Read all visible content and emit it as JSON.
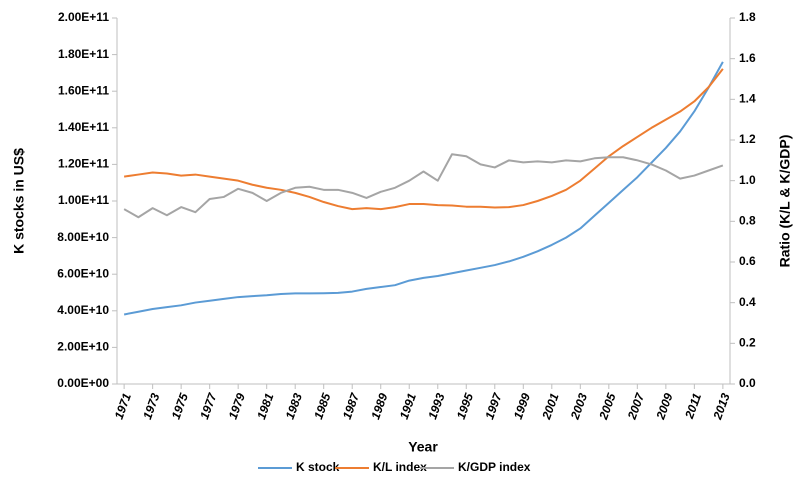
{
  "chart_data": {
    "type": "line",
    "x_label": "Year",
    "y_label": "K stocks in US$",
    "y2_label": "Ratio (K/L & K/GDP)",
    "x": [
      1971,
      1972,
      1973,
      1974,
      1975,
      1976,
      1977,
      1978,
      1979,
      1980,
      1981,
      1982,
      1983,
      1984,
      1985,
      1986,
      1987,
      1988,
      1989,
      1990,
      1991,
      1992,
      1993,
      1994,
      1995,
      1996,
      1997,
      1998,
      1999,
      2000,
      2001,
      2002,
      2003,
      2004,
      2005,
      2006,
      2007,
      2008,
      2009,
      2010,
      2011,
      2012,
      2013
    ],
    "xlim": [
      1970.5,
      2013.5
    ],
    "xticks": [
      1971,
      1973,
      1975,
      1977,
      1979,
      1981,
      1983,
      1985,
      1987,
      1989,
      1991,
      1993,
      1995,
      1997,
      1999,
      2001,
      2003,
      2005,
      2007,
      2009,
      2011,
      2013
    ],
    "ylim": [
      0,
      200000000000
    ],
    "yticks": [
      {
        "value": 0,
        "label": "0.00E+00"
      },
      {
        "value": 20000000000,
        "label": "2.00E+10"
      },
      {
        "value": 40000000000,
        "label": "4.00E+10"
      },
      {
        "value": 60000000000,
        "label": "6.00E+10"
      },
      {
        "value": 80000000000,
        "label": "8.00E+10"
      },
      {
        "value": 100000000000,
        "label": "1.00E+11"
      },
      {
        "value": 120000000000,
        "label": "1.20E+11"
      },
      {
        "value": 140000000000,
        "label": "1.40E+11"
      },
      {
        "value": 160000000000,
        "label": "1.60E+11"
      },
      {
        "value": 180000000000,
        "label": "1.80E+11"
      },
      {
        "value": 200000000000,
        "label": "2.00E+11"
      }
    ],
    "y2lim": [
      0,
      1.8
    ],
    "y2ticks": [
      {
        "value": 0,
        "label": "0.0"
      },
      0.2,
      0.4,
      0.6,
      0.8,
      {
        "value": 1,
        "label": "1.0"
      },
      1.2,
      1.4,
      1.6,
      1.8
    ],
    "grid": false,
    "legend": "bottom",
    "series": [
      {
        "name": "K stock",
        "color": "#5b9bd5",
        "axis": "y",
        "values": [
          38000000000,
          39500000000,
          41000000000,
          42000000000,
          43000000000,
          44500000000,
          45500000000,
          46500000000,
          47500000000,
          48000000000,
          48500000000,
          49200000000,
          49500000000,
          49500000000,
          49600000000,
          49800000000,
          50500000000,
          52000000000,
          53000000000,
          54000000000,
          56500000000,
          58000000000,
          59000000000,
          60500000000,
          62000000000,
          63500000000,
          65000000000,
          67000000000,
          69500000000,
          72500000000,
          76000000000,
          80000000000,
          85000000000,
          92000000000,
          99000000000,
          106000000000,
          113000000000,
          121000000000,
          129000000000,
          138000000000,
          149000000000,
          162000000000,
          176000000000
        ]
      },
      {
        "name": "K/L index",
        "color": "#ed7d31",
        "axis": "y2",
        "values": [
          1.02,
          1.03,
          1.04,
          1.035,
          1.025,
          1.03,
          1.02,
          1.01,
          1.0,
          0.98,
          0.965,
          0.955,
          0.94,
          0.92,
          0.895,
          0.875,
          0.86,
          0.865,
          0.86,
          0.87,
          0.885,
          0.885,
          0.88,
          0.878,
          0.872,
          0.872,
          0.868,
          0.87,
          0.88,
          0.9,
          0.925,
          0.955,
          1.0,
          1.06,
          1.12,
          1.17,
          1.215,
          1.26,
          1.3,
          1.34,
          1.39,
          1.46,
          1.55
        ]
      },
      {
        "name": "K/GDP index",
        "color": "#a5a5a5",
        "axis": "y2",
        "values": [
          0.86,
          0.82,
          0.865,
          0.83,
          0.87,
          0.845,
          0.91,
          0.92,
          0.96,
          0.94,
          0.9,
          0.94,
          0.965,
          0.97,
          0.955,
          0.955,
          0.94,
          0.915,
          0.945,
          0.965,
          1.0,
          1.045,
          1.0,
          1.13,
          1.12,
          1.08,
          1.065,
          1.1,
          1.09,
          1.095,
          1.09,
          1.1,
          1.095,
          1.11,
          1.115,
          1.115,
          1.1,
          1.08,
          1.05,
          1.01,
          1.025,
          1.05,
          1.075
        ]
      }
    ]
  }
}
